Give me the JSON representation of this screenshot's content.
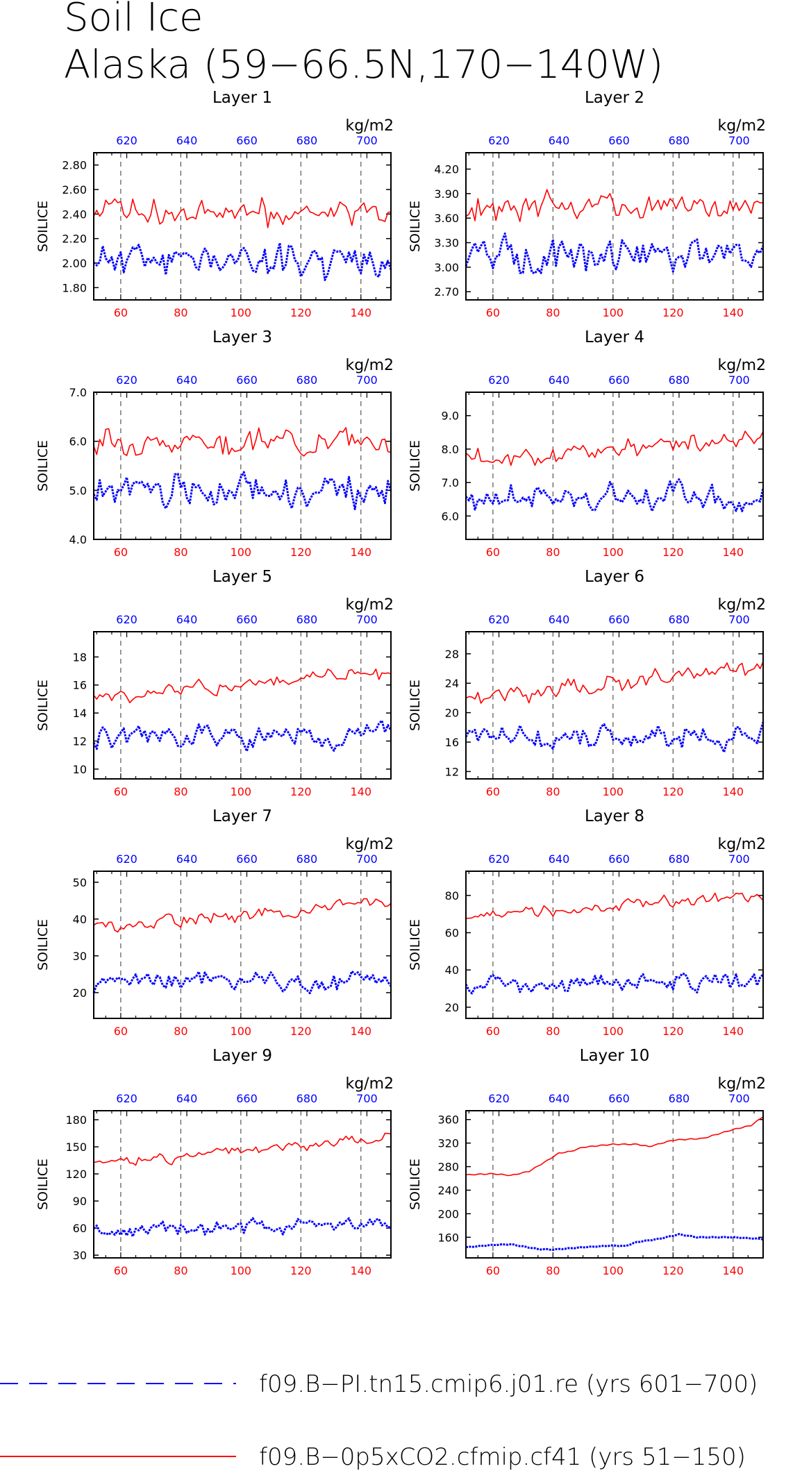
{
  "figure": {
    "title_line1": "Soil Ice",
    "title_line2": "Alaska (59−66.5N,170−140W)",
    "colors": {
      "blue": "#0000ff",
      "red": "#ff0000",
      "grid": "#555555"
    }
  },
  "legend": [
    {
      "label": "f09.B−PI.tn15.cmip6.j01.re (yrs 601−700)",
      "color": "#0000ff",
      "style": "dashed"
    },
    {
      "label": "f09.B−0p5xCO2.cfmip.cf41 (yrs 51−150)",
      "color": "#ff0000",
      "style": "solid"
    }
  ],
  "chart_data": [
    {
      "type": "line",
      "title": "Layer 1",
      "ylabel": "SOILICE",
      "unit_label": "kg/m2",
      "ylim": [
        1.7,
        2.9
      ],
      "yticks": [
        "1.80",
        "2.00",
        "2.20",
        "2.40",
        "2.60",
        "2.80"
      ],
      "xlim": [
        51,
        150
      ],
      "xticks_red": [
        "60",
        "80",
        "100",
        "120",
        "140"
      ],
      "xticks_blue": [
        "620",
        "640",
        "660",
        "680",
        "700"
      ],
      "grid": "vertical dashed at 60, 80, 100, 120, 140",
      "series": [
        {
          "color": "#0000ff",
          "style": "dashed",
          "base": 2.03,
          "amp": 0.19,
          "trend": 0.0,
          "seed": 11
        },
        {
          "color": "#ff0000",
          "style": "solid",
          "base": 2.42,
          "amp": 0.16,
          "trend": 0.0,
          "seed": 12
        }
      ]
    },
    {
      "type": "line",
      "title": "Layer 2",
      "ylabel": "SOILICE",
      "unit_label": "kg/m2",
      "ylim": [
        2.6,
        4.4
      ],
      "yticks": [
        "2.70",
        "3.00",
        "3.30",
        "3.60",
        "3.90",
        "4.20"
      ],
      "xlim": [
        51,
        150
      ],
      "xticks_red": [
        "60",
        "80",
        "100",
        "120",
        "140"
      ],
      "xticks_blue": [
        "620",
        "640",
        "660",
        "680",
        "700"
      ],
      "grid": "vertical dashed at 60, 80, 100, 120, 140",
      "series": [
        {
          "color": "#0000ff",
          "style": "dashed",
          "base": 3.15,
          "amp": 0.28,
          "trend": 0.0,
          "seed": 21
        },
        {
          "color": "#ff0000",
          "style": "solid",
          "base": 3.75,
          "amp": 0.22,
          "trend": 0.0,
          "seed": 22
        }
      ]
    },
    {
      "type": "line",
      "title": "Layer 3",
      "ylabel": "SOILICE",
      "unit_label": "kg/m2",
      "ylim": [
        4.0,
        7.0
      ],
      "yticks": [
        "4.0",
        "5.0",
        "6.0",
        "7.0"
      ],
      "xlim": [
        51,
        150
      ],
      "xticks_red": [
        "60",
        "80",
        "100",
        "120",
        "140"
      ],
      "xticks_blue": [
        "620",
        "640",
        "660",
        "680",
        "700"
      ],
      "grid": "vertical dashed at 60, 80, 100, 120, 140",
      "series": [
        {
          "color": "#0000ff",
          "style": "dashed",
          "base": 5.0,
          "amp": 0.45,
          "trend": 0.0,
          "seed": 31
        },
        {
          "color": "#ff0000",
          "style": "solid",
          "base": 6.0,
          "amp": 0.35,
          "trend": 0.0,
          "seed": 32
        }
      ]
    },
    {
      "type": "line",
      "title": "Layer 4",
      "ylabel": "SOILICE",
      "unit_label": "kg/m2",
      "ylim": [
        5.3,
        9.7
      ],
      "yticks": [
        "6.0",
        "7.0",
        "8.0",
        "9.0"
      ],
      "xlim": [
        51,
        150
      ],
      "xticks_red": [
        "60",
        "80",
        "100",
        "120",
        "140"
      ],
      "xticks_blue": [
        "620",
        "640",
        "660",
        "680",
        "700"
      ],
      "grid": "vertical dashed at 60, 80, 100, 120, 140",
      "series": [
        {
          "color": "#0000ff",
          "style": "dashed",
          "base": 6.5,
          "amp": 0.6,
          "trend": 0.0,
          "seed": 41
        },
        {
          "color": "#ff0000",
          "style": "solid",
          "base": 8.0,
          "amp": 0.4,
          "trend": 0.8,
          "seed": 42
        }
      ]
    },
    {
      "type": "line",
      "title": "Layer 5",
      "ylabel": "SOILICE",
      "unit_label": "kg/m2",
      "ylim": [
        9.3,
        19.8
      ],
      "yticks": [
        "10",
        "12",
        "14",
        "16",
        "18"
      ],
      "xlim": [
        51,
        150
      ],
      "xticks_red": [
        "60",
        "80",
        "100",
        "120",
        "140"
      ],
      "xticks_blue": [
        "620",
        "640",
        "660",
        "680",
        "700"
      ],
      "grid": "vertical dashed at 60, 80, 100, 120, 140",
      "series": [
        {
          "color": "#0000ff",
          "style": "dashed",
          "base": 12.3,
          "amp": 1.2,
          "trend": 0.3,
          "seed": 51
        },
        {
          "color": "#ff0000",
          "style": "solid",
          "base": 16.0,
          "amp": 0.8,
          "trend": 2.0,
          "seed": 52
        }
      ]
    },
    {
      "type": "line",
      "title": "Layer 6",
      "ylabel": "SOILICE",
      "unit_label": "kg/m2",
      "ylim": [
        11,
        31
      ],
      "yticks": [
        "12",
        "16",
        "20",
        "24",
        "28"
      ],
      "xlim": [
        51,
        150
      ],
      "xticks_red": [
        "60",
        "80",
        "100",
        "120",
        "140"
      ],
      "xticks_blue": [
        "620",
        "640",
        "660",
        "680",
        "700"
      ],
      "grid": "vertical dashed at 60, 80, 100, 120, 140",
      "series": [
        {
          "color": "#0000ff",
          "style": "dashed",
          "base": 16.5,
          "amp": 2.3,
          "trend": 0.0,
          "seed": 61
        },
        {
          "color": "#ff0000",
          "style": "solid",
          "base": 24.0,
          "amp": 1.6,
          "trend": 4.0,
          "seed": 62
        }
      ]
    },
    {
      "type": "line",
      "title": "Layer 7",
      "ylabel": "SOILICE",
      "unit_label": "kg/m2",
      "ylim": [
        13,
        53
      ],
      "yticks": [
        "20",
        "30",
        "40",
        "50"
      ],
      "xlim": [
        51,
        150
      ],
      "xticks_red": [
        "60",
        "80",
        "100",
        "120",
        "140"
      ],
      "xticks_blue": [
        "620",
        "640",
        "660",
        "680",
        "700"
      ],
      "grid": "vertical dashed at 60, 80, 100, 120, 140",
      "series": [
        {
          "color": "#0000ff",
          "style": "dashed",
          "base": 23.5,
          "amp": 3.8,
          "trend": 0.0,
          "seed": 71
        },
        {
          "color": "#ff0000",
          "style": "solid",
          "base": 41.0,
          "amp": 2.8,
          "trend": 7.0,
          "seed": 72
        }
      ]
    },
    {
      "type": "line",
      "title": "Layer 8",
      "ylabel": "SOILICE",
      "unit_label": "kg/m2",
      "ylim": [
        14,
        93
      ],
      "yticks": [
        "20",
        "40",
        "60",
        "80"
      ],
      "xlim": [
        51,
        150
      ],
      "xticks_red": [
        "60",
        "80",
        "100",
        "120",
        "140"
      ],
      "xticks_blue": [
        "620",
        "640",
        "660",
        "680",
        "700"
      ],
      "grid": "vertical dashed at 60, 80, 100, 120, 140",
      "series": [
        {
          "color": "#0000ff",
          "style": "dashed",
          "base": 33.0,
          "amp": 7.5,
          "trend": 2.0,
          "seed": 81
        },
        {
          "color": "#ff0000",
          "style": "solid",
          "base": 74.0,
          "amp": 4.5,
          "trend": 12.0,
          "seed": 82
        }
      ]
    },
    {
      "type": "line",
      "title": "Layer 9",
      "ylabel": "SOILICE",
      "unit_label": "kg/m2",
      "ylim": [
        27,
        190
      ],
      "yticks": [
        "30",
        "60",
        "90",
        "120",
        "150",
        "180"
      ],
      "xlim": [
        51,
        150
      ],
      "xticks_red": [
        "60",
        "80",
        "100",
        "120",
        "140"
      ],
      "xticks_blue": [
        "620",
        "640",
        "660",
        "680",
        "700"
      ],
      "grid": "vertical dashed at 60, 80, 100, 120, 140",
      "series": [
        {
          "color": "#0000ff",
          "style": "dashed",
          "base": 60.0,
          "amp": 12.0,
          "trend": 10.0,
          "seed": 91
        },
        {
          "color": "#ff0000",
          "style": "solid",
          "base": 146.0,
          "amp": 7.0,
          "trend": 30.0,
          "seed": 92
        }
      ]
    },
    {
      "type": "line",
      "title": "Layer 10",
      "ylabel": "SOILICE",
      "unit_label": "kg/m2",
      "ylim": [
        125,
        375
      ],
      "yticks": [
        "160",
        "200",
        "240",
        "280",
        "320",
        "360"
      ],
      "xlim": [
        51,
        150
      ],
      "xticks_red": [
        "60",
        "80",
        "100",
        "120",
        "140"
      ],
      "xticks_blue": [
        "620",
        "640",
        "660",
        "680",
        "700"
      ],
      "grid": "vertical dashed at 60, 80, 100, 120, 140",
      "series": [
        {
          "color": "#0000ff",
          "style": "dashed",
          "anchors": [
            [
              51,
              143
            ],
            [
              60,
              147
            ],
            [
              66,
              148
            ],
            [
              75,
              140
            ],
            [
              80,
              139
            ],
            [
              90,
              143
            ],
            [
              100,
              146
            ],
            [
              104,
              145
            ],
            [
              108,
              152
            ],
            [
              115,
              157
            ],
            [
              122,
              165
            ],
            [
              128,
              160
            ],
            [
              140,
              160
            ],
            [
              150,
              157
            ]
          ]
        },
        {
          "color": "#ff0000",
          "style": "solid",
          "anchors": [
            [
              51,
              266
            ],
            [
              60,
              268
            ],
            [
              66,
              265
            ],
            [
              72,
              272
            ],
            [
              78,
              290
            ],
            [
              82,
              303
            ],
            [
              86,
              306
            ],
            [
              90,
              313
            ],
            [
              100,
              318
            ],
            [
              108,
              318
            ],
            [
              112,
              314
            ],
            [
              120,
              325
            ],
            [
              130,
              328
            ],
            [
              140,
              343
            ],
            [
              146,
              350
            ],
            [
              150,
              365
            ]
          ]
        }
      ]
    }
  ]
}
